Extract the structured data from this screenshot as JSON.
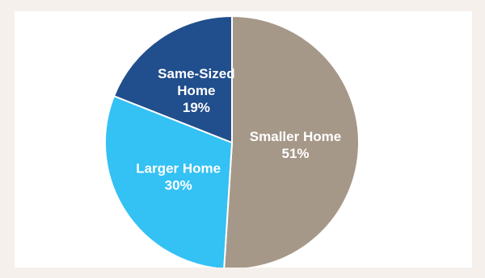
{
  "chart_data": {
    "type": "pie",
    "title": "",
    "slices": [
      {
        "name": "Smaller Home",
        "label_lines": [
          "Smaller Home"
        ],
        "value": 51,
        "value_label": "51%",
        "color": "#a69888"
      },
      {
        "name": "Larger Home",
        "label_lines": [
          "Larger Home"
        ],
        "value": 30,
        "value_label": "30%",
        "color": "#34c1f4"
      },
      {
        "name": "Same-Sized Home",
        "label_lines": [
          "Same-Sized",
          "Home"
        ],
        "value": 19,
        "value_label": "19%",
        "color": "#214e8c"
      }
    ],
    "start_angle_deg": 0,
    "direction": "clockwise",
    "legend": "none",
    "colors": {
      "page_background": "#f6f0ec",
      "plot_background": "#ffffff",
      "label_text": "#ffffff",
      "slice_border": "#ffffff"
    }
  }
}
